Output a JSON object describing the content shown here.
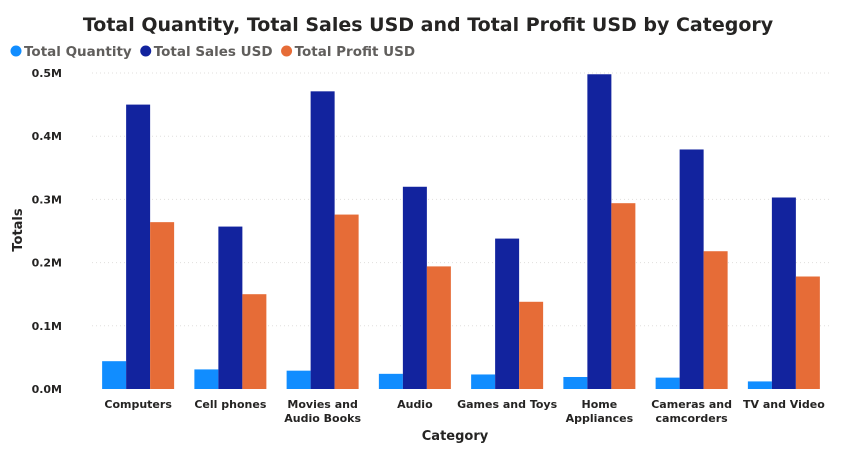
{
  "chart_data": {
    "type": "bar",
    "title": "Total Quantity, Total Sales USD and Total Profit USD by Category",
    "xlabel": "Category",
    "ylabel": "Totals",
    "ylim": [
      0,
      500000
    ],
    "yticks": [
      {
        "value": 0,
        "label": "0.0M"
      },
      {
        "value": 100000,
        "label": "0.1M"
      },
      {
        "value": 200000,
        "label": "0.2M"
      },
      {
        "value": 300000,
        "label": "0.3M"
      },
      {
        "value": 400000,
        "label": "0.4M"
      },
      {
        "value": 500000,
        "label": "0.5M"
      }
    ],
    "grid": true,
    "legend_position": "top-left",
    "categories": [
      [
        "Computers"
      ],
      [
        "Cell phones"
      ],
      [
        "Movies and",
        "Audio Books"
      ],
      [
        "Audio"
      ],
      [
        "Games and Toys"
      ],
      [
        "Home",
        "Appliances"
      ],
      [
        "Cameras and",
        "camcorders"
      ],
      [
        "TV and Video"
      ]
    ],
    "series": [
      {
        "name": "Total Quantity",
        "color": "#118dff",
        "values": [
          44000,
          31000,
          29000,
          24000,
          23000,
          19000,
          18000,
          12000
        ]
      },
      {
        "name": "Total Sales USD",
        "color": "#12239e",
        "values": [
          450000,
          257000,
          471000,
          320000,
          238000,
          498000,
          379000,
          303000
        ]
      },
      {
        "name": "Total Profit USD",
        "color": "#e66c37",
        "values": [
          264000,
          150000,
          276000,
          194000,
          138000,
          294000,
          218000,
          178000
        ]
      }
    ]
  }
}
